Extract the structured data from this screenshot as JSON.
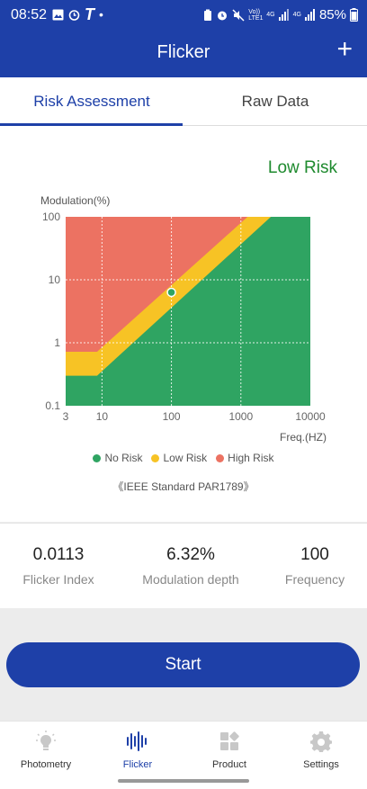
{
  "status_bar": {
    "time": "08:52",
    "carrier_glyph": "T",
    "volte": "Vo)) LTE1",
    "net1": "4G",
    "net2": "4G",
    "battery": "85%"
  },
  "app_bar": {
    "title": "Flicker",
    "add_label": "+"
  },
  "tabs": [
    {
      "label": "Risk Assessment",
      "active": true
    },
    {
      "label": "Raw Data",
      "active": false
    }
  ],
  "risk_label": "Low Risk",
  "chart_data": {
    "type": "scatter",
    "title": "",
    "ylabel": "Modulation(%)",
    "xlabel": "Freq.(HZ)",
    "x_scale": "log",
    "y_scale": "log",
    "xlim": [
      3,
      10000
    ],
    "ylim": [
      0.1,
      100
    ],
    "x_ticks": [
      "3",
      "10",
      "100",
      "1000",
      "10000"
    ],
    "y_ticks": [
      "100",
      "10",
      "1",
      "0.1"
    ],
    "grid": true,
    "regions": [
      {
        "name": "No Risk",
        "color": "#2fa462"
      },
      {
        "name": "Low Risk",
        "color": "#f7c325"
      },
      {
        "name": "High Risk",
        "color": "#ec7262"
      }
    ],
    "points": [
      {
        "x": 100,
        "y": 6.32
      }
    ],
    "legend": [
      "No Risk",
      "Low Risk",
      "High Risk"
    ],
    "legend_position": "bottom-center"
  },
  "standard": "《IEEE Standard PAR1789》",
  "stats": [
    {
      "value": "0.0113",
      "label": "Flicker Index"
    },
    {
      "value": "6.32%",
      "label": "Modulation depth"
    },
    {
      "value": "100",
      "label": "Frequency"
    }
  ],
  "start_label": "Start",
  "nav": [
    {
      "label": "Photometry",
      "icon": "bulb-icon",
      "active": false
    },
    {
      "label": "Flicker",
      "icon": "waveform-icon",
      "active": true
    },
    {
      "label": "Product",
      "icon": "grid-icon",
      "active": false
    },
    {
      "label": "Settings",
      "icon": "gear-icon",
      "active": false
    }
  ],
  "colors": {
    "primary": "#1e40a8",
    "risk_text": "#1e8a2e"
  }
}
